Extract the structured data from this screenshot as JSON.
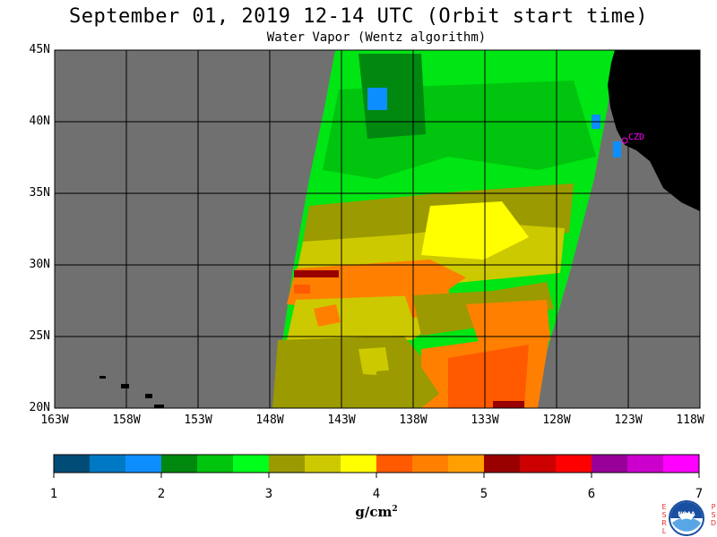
{
  "header": {
    "title": "September 01, 2019  12-14 UTC  (Orbit start time)",
    "subtitle": "Water Vapor (Wentz algorithm)"
  },
  "map": {
    "lat_labels": [
      "45N",
      "40N",
      "35N",
      "30N",
      "25N",
      "20N"
    ],
    "lon_labels": [
      "163W",
      "158W",
      "153W",
      "148W",
      "143W",
      "138W",
      "133W",
      "128W",
      "123W",
      "118W"
    ],
    "station_label": "CZD",
    "colors": {
      "no_data": "#707070",
      "land": "#000000",
      "grid": "#000000",
      "station": "#ff00ff"
    }
  },
  "colorbar": {
    "tick_labels": [
      "1",
      "2",
      "3",
      "4",
      "5",
      "6",
      "7"
    ],
    "units": "g/cm",
    "units_sup": "2",
    "colors": [
      "#004c77",
      "#0079c5",
      "#0d8eff",
      "#00880f",
      "#00c40d",
      "#00ff1a",
      "#9b9a00",
      "#cdc900",
      "#ffff00",
      "#ff5a00",
      "#ff8000",
      "#ffa000",
      "#990000",
      "#cc0000",
      "#ff0000",
      "#990099",
      "#cc00cc",
      "#ff00ff"
    ]
  },
  "logo": {
    "left_letters": [
      "E",
      "S",
      "R",
      "L"
    ],
    "right_letters": [
      "P",
      "S",
      "D"
    ],
    "text": "NOAA"
  }
}
